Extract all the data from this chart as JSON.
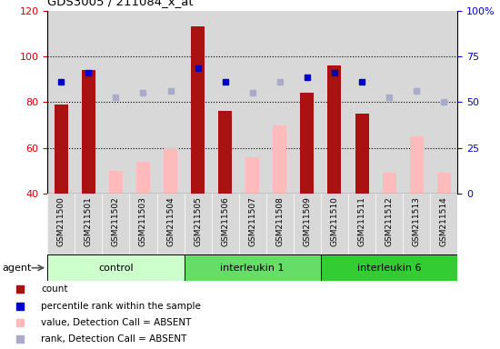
{
  "title": "GDS3005 / 211084_x_at",
  "samples": [
    "GSM211500",
    "GSM211501",
    "GSM211502",
    "GSM211503",
    "GSM211504",
    "GSM211505",
    "GSM211506",
    "GSM211507",
    "GSM211508",
    "GSM211509",
    "GSM211510",
    "GSM211511",
    "GSM211512",
    "GSM211513",
    "GSM211514"
  ],
  "count_values": [
    79,
    94,
    null,
    null,
    null,
    113,
    76,
    null,
    null,
    84,
    96,
    75,
    null,
    null,
    null
  ],
  "absent_value_values": [
    null,
    null,
    50,
    54,
    60,
    null,
    null,
    56,
    70,
    null,
    null,
    null,
    49,
    65,
    49
  ],
  "rank_present_values": [
    89,
    93,
    null,
    null,
    null,
    95,
    89,
    null,
    null,
    91,
    93,
    89,
    null,
    null,
    null
  ],
  "rank_absent_values": [
    null,
    null,
    82,
    84,
    85,
    null,
    null,
    84,
    89,
    null,
    null,
    null,
    82,
    85,
    80
  ],
  "ylim_left": [
    40,
    120
  ],
  "ylim_right": [
    0,
    100
  ],
  "yticks_left": [
    40,
    60,
    80,
    100,
    120
  ],
  "yticks_right": [
    0,
    25,
    50,
    75,
    100
  ],
  "ytick_right_labels": [
    "0",
    "25",
    "50",
    "75",
    "100%"
  ],
  "grid_yvals": [
    60,
    80,
    100
  ],
  "groups": [
    {
      "label": "control",
      "start": 0,
      "end": 4,
      "color": "#ccffcc"
    },
    {
      "label": "interleukin 1",
      "start": 5,
      "end": 9,
      "color": "#66dd66"
    },
    {
      "label": "interleukin 6",
      "start": 10,
      "end": 14,
      "color": "#33cc33"
    }
  ],
  "bar_color_present": "#aa1111",
  "bar_color_absent": "#ffbbbb",
  "dot_color_present": "#0000cc",
  "dot_color_absent": "#aaaacc",
  "bar_width": 0.5,
  "bg_color": "#d8d8d8",
  "color_left": "#cc0000",
  "color_right": "#0000cc",
  "legend_items": [
    {
      "color": "#aa1111",
      "label": "count"
    },
    {
      "color": "#0000cc",
      "label": "percentile rank within the sample"
    },
    {
      "color": "#ffbbbb",
      "label": "value, Detection Call = ABSENT"
    },
    {
      "color": "#aaaacc",
      "label": "rank, Detection Call = ABSENT"
    }
  ]
}
